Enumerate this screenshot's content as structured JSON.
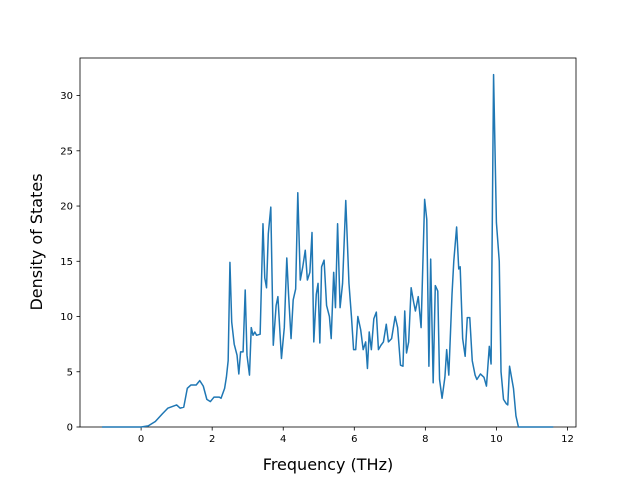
{
  "chart_data": {
    "type": "line",
    "x_label": "Frequency (THz)",
    "y_label": "Density of States",
    "x": [
      -1.1,
      0.0,
      0.2,
      0.4,
      0.6,
      0.75,
      1.0,
      1.1,
      1.2,
      1.3,
      1.4,
      1.55,
      1.65,
      1.75,
      1.85,
      1.95,
      2.05,
      2.2,
      2.25,
      2.35,
      2.4,
      2.45,
      2.5,
      2.55,
      2.62,
      2.7,
      2.75,
      2.8,
      2.87,
      2.93,
      2.98,
      3.05,
      3.1,
      3.15,
      3.2,
      3.25,
      3.35,
      3.43,
      3.48,
      3.53,
      3.58,
      3.65,
      3.72,
      3.8,
      3.85,
      3.95,
      4.03,
      4.1,
      4.15,
      4.22,
      4.28,
      4.35,
      4.41,
      4.48,
      4.55,
      4.62,
      4.68,
      4.75,
      4.81,
      4.86,
      4.93,
      4.98,
      5.03,
      5.08,
      5.15,
      5.22,
      5.3,
      5.35,
      5.42,
      5.47,
      5.53,
      5.6,
      5.67,
      5.76,
      5.85,
      5.92,
      5.98,
      6.04,
      6.1,
      6.18,
      6.25,
      6.32,
      6.37,
      6.42,
      6.48,
      6.55,
      6.62,
      6.68,
      6.75,
      6.82,
      6.9,
      6.96,
      7.05,
      7.15,
      7.22,
      7.3,
      7.37,
      7.42,
      7.47,
      7.53,
      7.6,
      7.67,
      7.72,
      7.8,
      7.88,
      7.98,
      8.04,
      8.1,
      8.15,
      8.22,
      8.28,
      8.35,
      8.4,
      8.47,
      8.55,
      8.6,
      8.66,
      8.75,
      8.8,
      8.88,
      8.94,
      8.98,
      9.05,
      9.12,
      9.18,
      9.25,
      9.32,
      9.4,
      9.45,
      9.55,
      9.65,
      9.72,
      9.8,
      9.85,
      9.92,
      10.0,
      10.08,
      10.13,
      10.2,
      10.28,
      10.32,
      10.37,
      10.48,
      10.55,
      10.62,
      11.6
    ],
    "values": [
      0,
      0,
      0.1,
      0.5,
      1.2,
      1.7,
      2.0,
      1.7,
      1.8,
      3.5,
      3.8,
      3.8,
      4.2,
      3.7,
      2.5,
      2.3,
      2.7,
      2.7,
      2.6,
      3.5,
      4.5,
      6.0,
      14.9,
      9.5,
      7.5,
      6.5,
      4.8,
      6.8,
      6.8,
      12.4,
      6.5,
      4.7,
      9.0,
      8.3,
      8.6,
      8.3,
      8.4,
      18.4,
      13.5,
      12.6,
      17.5,
      19.9,
      7.4,
      11.0,
      11.8,
      6.2,
      9.0,
      15.3,
      12.0,
      8.0,
      11.5,
      12.5,
      21.2,
      13.3,
      14.5,
      16.0,
      13.3,
      14.0,
      17.6,
      7.7,
      12.0,
      13.0,
      7.6,
      14.5,
      15.1,
      11.0,
      10.0,
      8.0,
      14.0,
      10.8,
      18.4,
      10.8,
      13.0,
      20.5,
      13.0,
      10.0,
      7.0,
      7.0,
      10.0,
      8.8,
      7.0,
      7.7,
      5.3,
      8.6,
      7.0,
      9.8,
      10.4,
      7.0,
      7.4,
      7.7,
      9.3,
      7.7,
      8.0,
      10.0,
      9.0,
      5.6,
      5.5,
      10.5,
      6.7,
      7.7,
      12.6,
      11.3,
      10.5,
      11.8,
      9.0,
      20.6,
      18.8,
      5.5,
      15.2,
      4.0,
      12.8,
      12.3,
      4.3,
      2.6,
      4.5,
      7.0,
      4.7,
      12.0,
      15.0,
      18.1,
      14.3,
      14.5,
      8.0,
      6.4,
      9.9,
      9.9,
      6.0,
      4.7,
      4.3,
      4.8,
      4.5,
      3.7,
      7.3,
      5.7,
      31.9,
      18.5,
      15.0,
      5.0,
      2.5,
      2.1,
      2.0,
      5.5,
      3.5,
      1.0,
      0,
      0
    ],
    "color": "#1f77b4",
    "xlim": [
      -1.72,
      12.24
    ],
    "ylim": [
      0,
      33.4
    ],
    "xticks": [
      0,
      2,
      4,
      6,
      8,
      10,
      12
    ],
    "yticks": [
      0,
      5,
      10,
      15,
      20,
      25,
      30
    ]
  }
}
